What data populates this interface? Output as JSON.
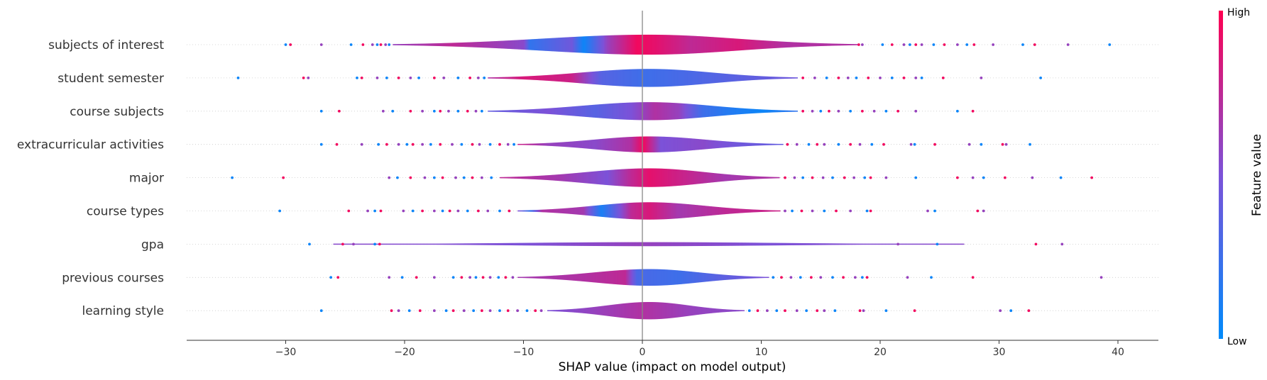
{
  "chart_data": {
    "type": "violin",
    "xlabel": "SHAP value (impact on model output)",
    "xlim": [
      -38.5,
      43.2
    ],
    "xticks": [
      -30,
      -20,
      -10,
      0,
      10,
      20,
      30,
      40
    ],
    "xtick_labels": [
      "−30",
      "−20",
      "−10",
      "0",
      "10",
      "20",
      "30",
      "40"
    ],
    "colorbar": {
      "label": "Feature value",
      "high_label": "High",
      "low_label": "Low",
      "high_color": "#ff0051",
      "low_color": "#008bfb"
    },
    "features": [
      {
        "name": "subjects of interest",
        "range": [
          -21,
          18
        ],
        "width": 0.3,
        "outliers": [
          -30,
          -29.6,
          -27,
          -24.5,
          -23.5,
          -22.7,
          -22.3,
          -22,
          -21.6,
          -21.3,
          18.2,
          18.5,
          20.2,
          21,
          22,
          22.5,
          23,
          23.5,
          24.5,
          25.4,
          26.5,
          27.3,
          27.9,
          29.5,
          32,
          33,
          35.8,
          39.3
        ],
        "colors": [
          [
            -21,
            0.6
          ],
          [
            -16,
            0.75
          ],
          [
            -10,
            0.55
          ],
          [
            -9.5,
            0.2
          ],
          [
            -6,
            0.45
          ],
          [
            -5,
            0.05
          ],
          [
            -3,
            0.6
          ],
          [
            -0.5,
            0.95
          ],
          [
            1,
            0.9
          ],
          [
            4,
            0.75
          ],
          [
            8,
            0.85
          ],
          [
            12,
            0.7
          ],
          [
            18,
            0.7
          ]
        ]
      },
      {
        "name": "student semester",
        "range": [
          -13,
          13
        ],
        "width": 0.27,
        "outliers": [
          -34,
          -28.5,
          -28.1,
          -24,
          -23.6,
          -22.3,
          -21.5,
          -20.5,
          -19.5,
          -18.8,
          -17.5,
          -16.7,
          -15.5,
          -14.5,
          -13.8,
          -13.3,
          13.5,
          14.5,
          15.5,
          16.5,
          17.3,
          18,
          19,
          20,
          21,
          22,
          23,
          23.5,
          25.3,
          28.5,
          33.5
        ],
        "colors": [
          [
            -13,
            0.7
          ],
          [
            -10,
            0.85
          ],
          [
            -6,
            0.8
          ],
          [
            -3.5,
            0.35
          ],
          [
            0,
            0.25
          ],
          [
            4,
            0.3
          ],
          [
            13,
            0.45
          ]
        ]
      },
      {
        "name": "course subjects",
        "range": [
          -13,
          13
        ],
        "width": 0.27,
        "outliers": [
          -27,
          -25.5,
          -21.8,
          -21,
          -19.5,
          -18.5,
          -17.5,
          -17,
          -16.3,
          -15.5,
          -14.7,
          -14,
          -13.5,
          13.5,
          14.3,
          15,
          15.7,
          16.5,
          17.5,
          18.5,
          19.5,
          20.5,
          21.5,
          23,
          26.5,
          27.8
        ],
        "colors": [
          [
            -13,
            0.4
          ],
          [
            -8,
            0.5
          ],
          [
            -4,
            0.35
          ],
          [
            -1,
            0.5
          ],
          [
            1,
            0.7
          ],
          [
            3,
            0.6
          ],
          [
            5,
            0.25
          ],
          [
            7,
            0.15
          ],
          [
            10,
            0.05
          ],
          [
            13,
            0.2
          ]
        ]
      },
      {
        "name": "extracurricular activities",
        "range": [
          -10.5,
          11.7
        ],
        "width": 0.24,
        "outliers": [
          -27,
          -25.7,
          -23.6,
          -22.2,
          -21.5,
          -20.5,
          -19.8,
          -19.3,
          -18.5,
          -17.8,
          -17,
          -16,
          -15.2,
          -14.3,
          -13.7,
          -12.8,
          -12,
          -11.3,
          -10.8,
          12.2,
          13,
          14,
          14.7,
          15.3,
          16.5,
          17.5,
          18.3,
          19.3,
          20.3,
          22.6,
          22.9,
          24.6,
          27.5,
          28.5,
          30.3,
          30.6,
          32.6
        ],
        "colors": [
          [
            -10.5,
            0.8
          ],
          [
            -8,
            0.6
          ],
          [
            -4,
            0.55
          ],
          [
            -1,
            0.7
          ],
          [
            0,
            0.95
          ],
          [
            1.5,
            0.5
          ],
          [
            5,
            0.55
          ],
          [
            8,
            0.45
          ],
          [
            11.7,
            0.4
          ]
        ]
      },
      {
        "name": "major",
        "range": [
          -12,
          11.5
        ],
        "width": 0.28,
        "outliers": [
          -34.5,
          -30.2,
          -21.3,
          -20.6,
          -19.5,
          -18.3,
          -17.5,
          -16.8,
          -15.7,
          -15,
          -14.3,
          -13.5,
          -12.7,
          12,
          12.8,
          13.5,
          14.3,
          15.2,
          16,
          17,
          17.8,
          18.7,
          19.2,
          20.5,
          23,
          26.5,
          27.8,
          28.7,
          30.5,
          32.8,
          35.2,
          37.8
        ],
        "colors": [
          [
            -12,
            0.75
          ],
          [
            -7,
            0.65
          ],
          [
            -3,
            0.5
          ],
          [
            -1,
            0.75
          ],
          [
            0.5,
            0.9
          ],
          [
            3,
            0.8
          ],
          [
            7,
            0.65
          ],
          [
            11.5,
            0.7
          ]
        ]
      },
      {
        "name": "course types",
        "range": [
          -10.5,
          11.5
        ],
        "width": 0.26,
        "outliers": [
          -30.5,
          -24.7,
          -23.1,
          -22.5,
          -22,
          -20.1,
          -19.3,
          -18.5,
          -17.5,
          -16.8,
          -16.2,
          -15.5,
          -14.7,
          -13.8,
          -13,
          -12,
          -11.2,
          12,
          12.6,
          13.4,
          14.3,
          15.3,
          16.3,
          17.5,
          18.9,
          19.2,
          24,
          24.6,
          28.2,
          28.7
        ],
        "colors": [
          [
            -10.5,
            0.5
          ],
          [
            -9.5,
            0.2
          ],
          [
            -8.5,
            0.7
          ],
          [
            -5,
            0.65
          ],
          [
            -3.5,
            0.1
          ],
          [
            -2.5,
            0.35
          ],
          [
            -1,
            0.75
          ],
          [
            0.5,
            0.85
          ],
          [
            3,
            0.65
          ],
          [
            7,
            0.75
          ],
          [
            11.5,
            0.8
          ]
        ]
      },
      {
        "name": "gpa",
        "range": [
          -26,
          27
        ],
        "width": 0.06,
        "outliers": [
          -28,
          -25.2,
          -24.3,
          -22.5,
          -22.1,
          21.5,
          24.8,
          33.1,
          35.3
        ],
        "colors": [
          [
            -26,
            0.55
          ],
          [
            -10,
            0.5
          ],
          [
            0,
            0.6
          ],
          [
            10,
            0.5
          ],
          [
            27,
            0.55
          ]
        ]
      },
      {
        "name": "previous courses",
        "range": [
          -10.5,
          10.5
        ],
        "width": 0.25,
        "outliers": [
          -26.2,
          -25.6,
          -21.3,
          -20.2,
          -19,
          -17.5,
          -15.9,
          -15.2,
          -14.5,
          -14,
          -13.4,
          -12.8,
          -12.1,
          -11.5,
          -10.9,
          11,
          11.7,
          12.5,
          13.3,
          14.2,
          15,
          16,
          16.9,
          17.9,
          18.5,
          18.9,
          22.3,
          24.3,
          27.8,
          38.6
        ],
        "colors": [
          [
            -10.5,
            0.65
          ],
          [
            -5,
            0.7
          ],
          [
            -1.5,
            0.75
          ],
          [
            -0.5,
            0.3
          ],
          [
            3,
            0.25
          ],
          [
            10.5,
            0.5
          ]
        ]
      },
      {
        "name": "learning style",
        "range": [
          -8,
          8.5
        ],
        "width": 0.26,
        "outliers": [
          -27,
          -21.1,
          -20.5,
          -19.6,
          -18.7,
          -17.5,
          -16.5,
          -15.9,
          -15,
          -14.2,
          -13.5,
          -12.8,
          -12,
          -11.3,
          -10.5,
          -9.7,
          -9,
          -8.5,
          9,
          9.7,
          10.5,
          11.3,
          12,
          13,
          13.8,
          14.7,
          15.3,
          16.2,
          18.3,
          18.6,
          20.5,
          22.9,
          30.1,
          31,
          32.5
        ],
        "colors": [
          [
            -8,
            0.5
          ],
          [
            -4,
            0.6
          ],
          [
            0,
            0.7
          ],
          [
            4,
            0.6
          ],
          [
            8.5,
            0.55
          ]
        ]
      }
    ]
  }
}
